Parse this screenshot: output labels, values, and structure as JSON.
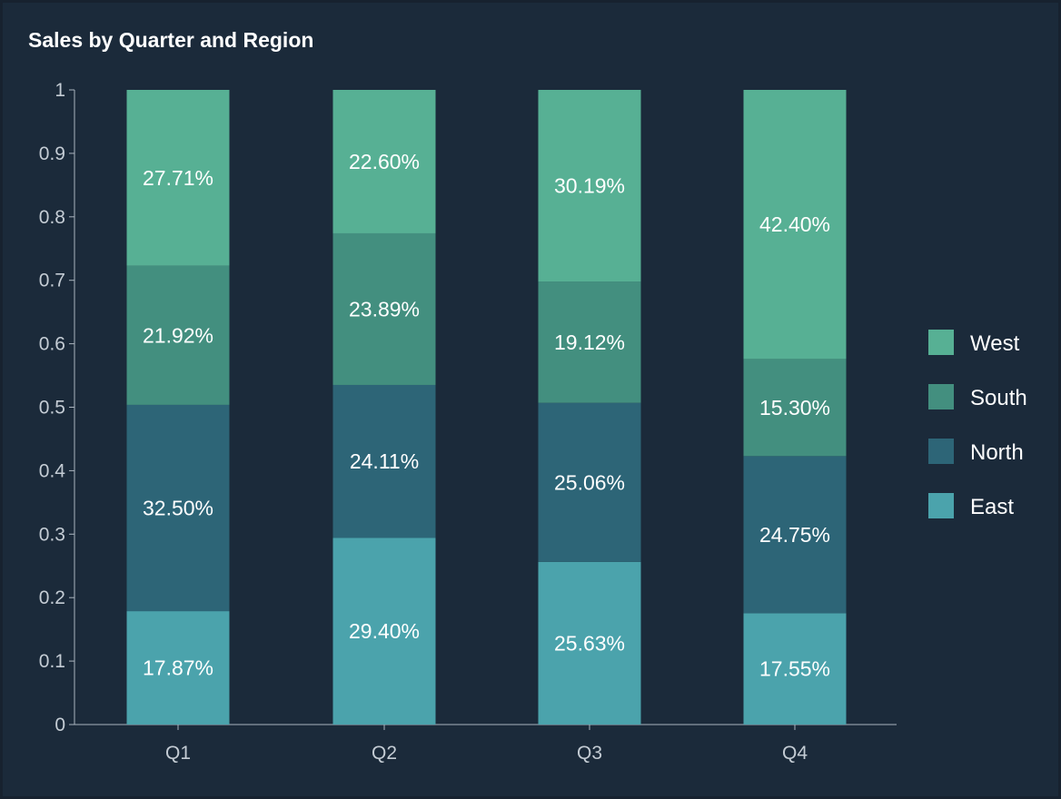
{
  "chart_data": {
    "type": "bar",
    "stacked": true,
    "normalized": true,
    "title": "Sales by Quarter and Region",
    "xlabel": "",
    "ylabel": "",
    "ylim": [
      0,
      1
    ],
    "y_ticks": [
      "0",
      "0.1",
      "0.2",
      "0.3",
      "0.4",
      "0.5",
      "0.6",
      "0.7",
      "0.8",
      "0.9",
      "1"
    ],
    "categories": [
      "Q1",
      "Q2",
      "Q3",
      "Q4"
    ],
    "series": [
      {
        "name": "East",
        "color": "#4ba3ac",
        "values": [
          0.1787,
          0.294,
          0.2563,
          0.1755
        ],
        "labels": [
          "17.87%",
          "29.40%",
          "25.63%",
          "17.55%"
        ]
      },
      {
        "name": "North",
        "color": "#2d6577",
        "values": [
          0.325,
          0.2411,
          0.2506,
          0.2475
        ],
        "labels": [
          "32.50%",
          "24.11%",
          "25.06%",
          "24.75%"
        ]
      },
      {
        "name": "South",
        "color": "#438f7f",
        "values": [
          0.2192,
          0.2389,
          0.1912,
          0.153
        ],
        "labels": [
          "21.92%",
          "23.89%",
          "19.12%",
          "15.30%"
        ]
      },
      {
        "name": "West",
        "color": "#57b094",
        "values": [
          0.2771,
          0.226,
          0.3019,
          0.424
        ],
        "labels": [
          "27.71%",
          "22.60%",
          "30.19%",
          "42.40%"
        ]
      }
    ],
    "legend": {
      "position": "right",
      "order": [
        "West",
        "South",
        "North",
        "East"
      ]
    },
    "grid": false
  }
}
